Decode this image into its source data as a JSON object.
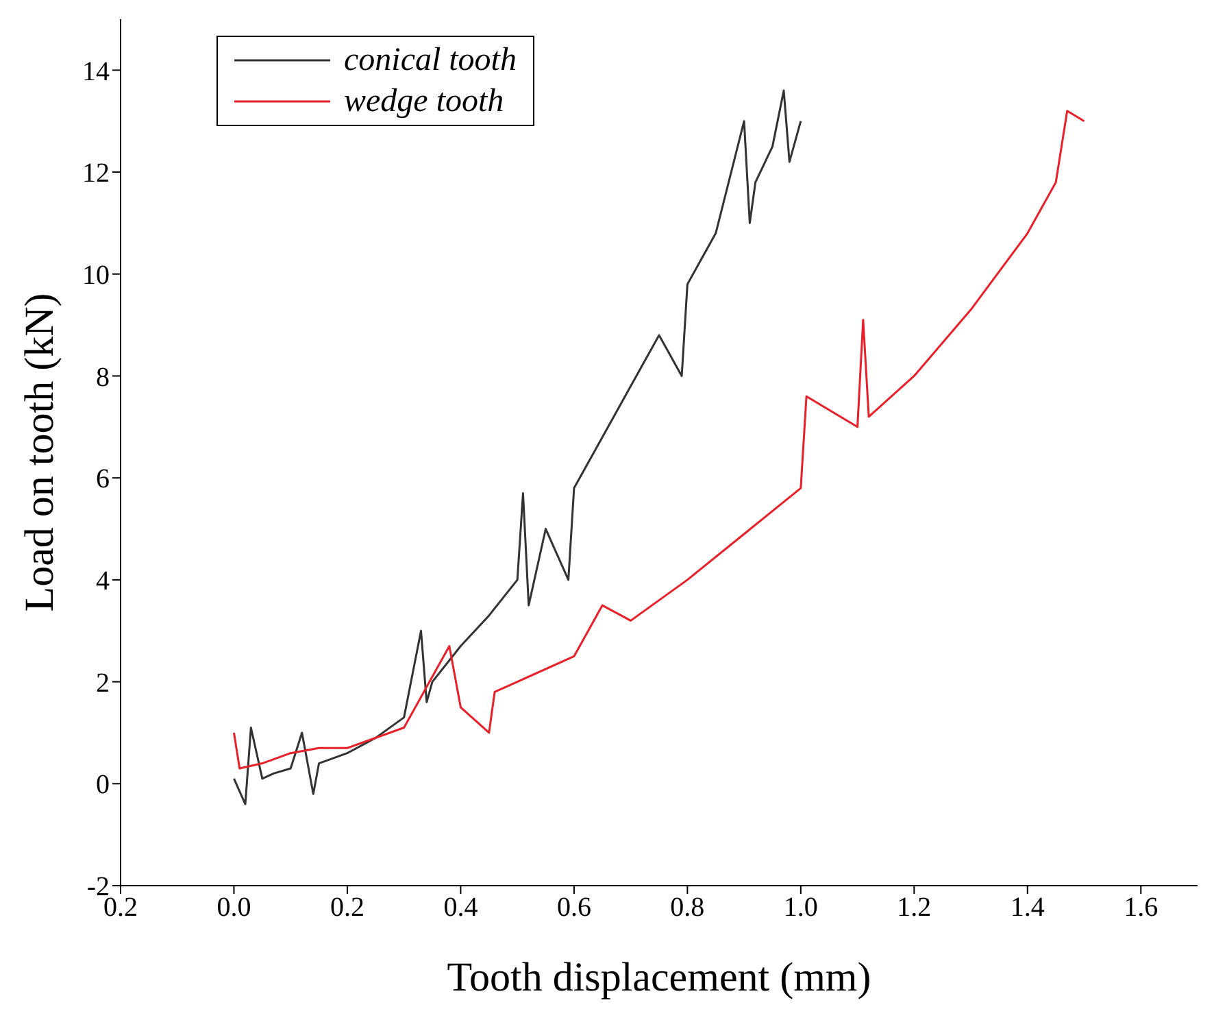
{
  "chart_data": {
    "type": "line",
    "xlabel": "Tooth displacement (mm)",
    "ylabel": "Load on tooth (kN)",
    "xlim": [
      -0.2,
      1.7
    ],
    "xticks": [
      {
        "value": -0.2,
        "label": "0.2"
      },
      {
        "value": 0,
        "label": "0.0"
      },
      {
        "value": 0.2,
        "label": "0.2"
      },
      {
        "value": 0.4,
        "label": "0.4"
      },
      {
        "value": 0.6,
        "label": "0.6"
      },
      {
        "value": 0.8,
        "label": "0.8"
      },
      {
        "value": 1,
        "label": "1.0"
      },
      {
        "value": 1.2,
        "label": "1.2"
      },
      {
        "value": 1.4,
        "label": "1.4"
      },
      {
        "value": 1.6,
        "label": "1.6"
      }
    ],
    "ylim": [
      -2,
      15
    ],
    "yticks": [
      -2,
      0,
      2,
      4,
      6,
      8,
      10,
      12,
      14
    ],
    "grid": false,
    "legend": "top left",
    "marker": "none",
    "line_style": "solid",
    "series": [
      {
        "name": "conical tooth",
        "color": "#333333",
        "x": [
          0,
          0.02,
          0.03,
          0.05,
          0.07,
          0.1,
          0.12,
          0.14,
          0.15,
          0.2,
          0.25,
          0.3,
          0.33,
          0.34,
          0.35,
          0.4,
          0.45,
          0.5,
          0.51,
          0.52,
          0.55,
          0.59,
          0.6,
          0.65,
          0.7,
          0.75,
          0.79,
          0.8,
          0.85,
          0.9,
          0.91,
          0.92,
          0.95,
          0.97,
          0.98,
          1.0
        ],
        "values": [
          0.1,
          -0.4,
          1.1,
          0.1,
          0.2,
          0.3,
          1.0,
          -0.2,
          0.4,
          0.6,
          0.9,
          1.3,
          3.0,
          1.6,
          2.0,
          2.7,
          3.3,
          4.0,
          5.7,
          3.5,
          5.0,
          4.0,
          5.8,
          6.8,
          7.8,
          8.8,
          8.0,
          9.8,
          10.8,
          13.0,
          11.0,
          11.8,
          12.5,
          13.6,
          12.2,
          13.0
        ]
      },
      {
        "name": "wedge tooth",
        "color": "#e8202a",
        "x": [
          0,
          0.01,
          0.05,
          0.1,
          0.15,
          0.2,
          0.3,
          0.38,
          0.4,
          0.45,
          0.46,
          0.5,
          0.6,
          0.65,
          0.7,
          0.8,
          0.9,
          1.0,
          1.01,
          1.1,
          1.11,
          1.12,
          1.2,
          1.3,
          1.4,
          1.45,
          1.47,
          1.5
        ],
        "values": [
          1.0,
          0.3,
          0.4,
          0.6,
          0.7,
          0.7,
          1.1,
          2.7,
          1.5,
          1.0,
          1.8,
          2.0,
          2.5,
          3.5,
          3.2,
          4.0,
          4.9,
          5.8,
          7.6,
          7.0,
          9.1,
          7.2,
          8.0,
          9.3,
          10.8,
          11.8,
          13.2,
          13.0
        ]
      }
    ]
  }
}
